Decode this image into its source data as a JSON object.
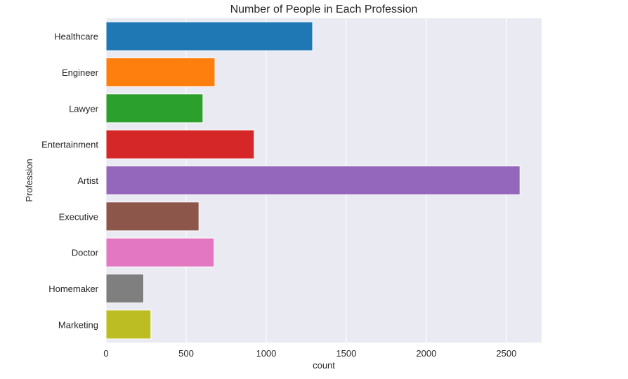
{
  "chart_data": {
    "type": "bar",
    "orientation": "horizontal",
    "title": "Number of People in Each Profession",
    "xlabel": "count",
    "ylabel": "Profession",
    "categories": [
      "Healthcare",
      "Engineer",
      "Lawyer",
      "Entertainment",
      "Artist",
      "Executive",
      "Doctor",
      "Homemaker",
      "Marketing"
    ],
    "values": [
      1290,
      680,
      605,
      925,
      2585,
      580,
      675,
      235,
      280
    ],
    "colors": [
      "#1f77b4",
      "#ff7f0e",
      "#2ca02c",
      "#d62728",
      "#9467bd",
      "#8c564b",
      "#e377c2",
      "#7f7f7f",
      "#bcbd22"
    ],
    "xlim": [
      0,
      2720
    ],
    "xticks": [
      0,
      500,
      1000,
      1500,
      2000,
      2500
    ],
    "grid": true,
    "legend": "none",
    "style": {
      "background": "#eaeaf2",
      "grid_color": "#ffffff"
    }
  }
}
